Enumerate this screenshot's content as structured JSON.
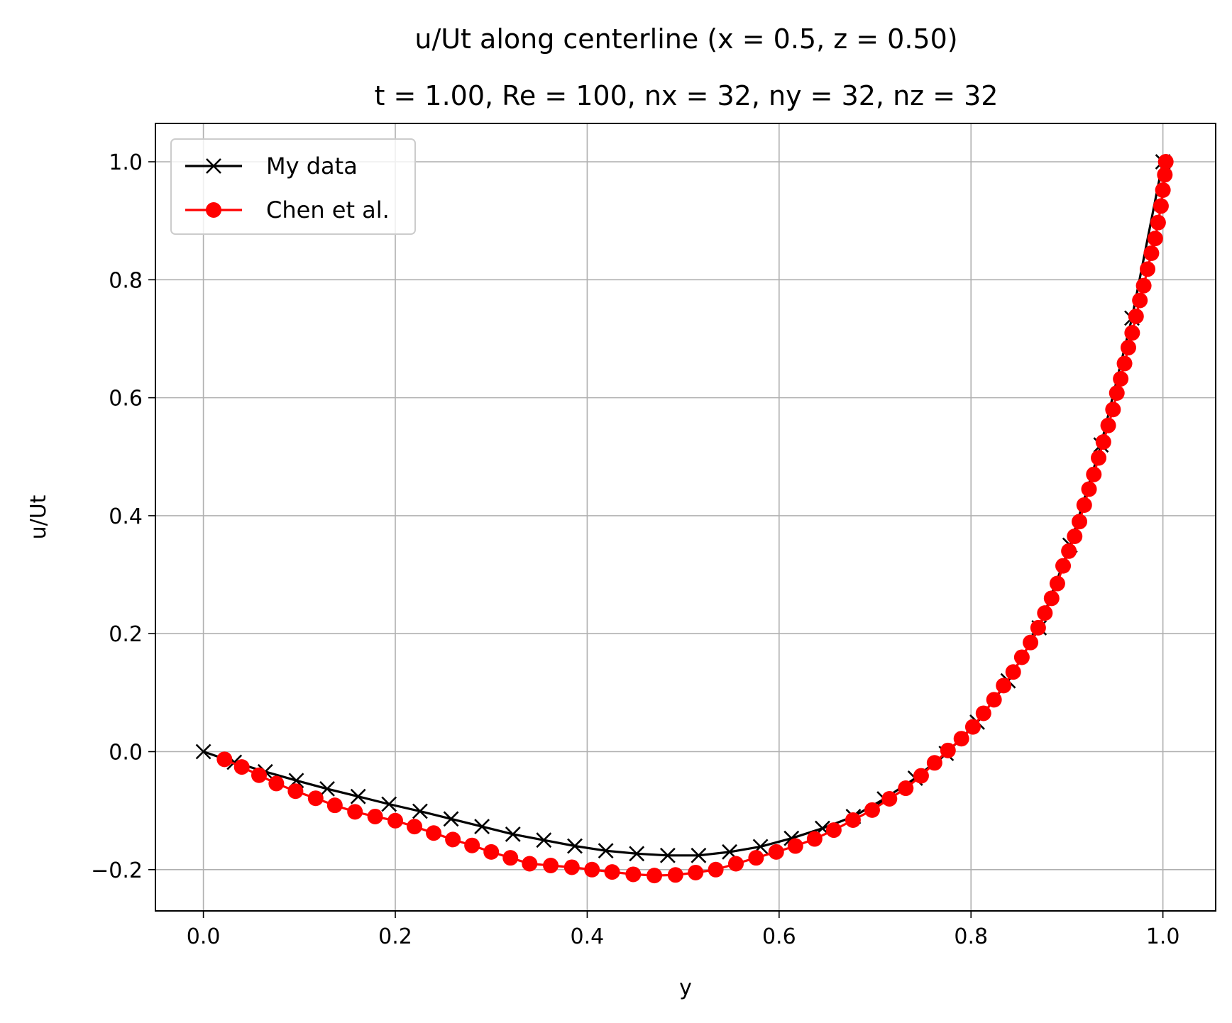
{
  "chart_data": {
    "type": "line",
    "title": "u/Ut along centerline (x = 0.5, z = 0.50)",
    "subtitle": "t = 1.00, Re = 100, nx = 32, ny = 32, nz = 32",
    "xlabel": "y",
    "ylabel": "u/Ut",
    "xlim": [
      -0.05,
      1.055
    ],
    "ylim": [
      -0.27,
      1.065
    ],
    "xticks": [
      0.0,
      0.2,
      0.4,
      0.6,
      0.8,
      1.0
    ],
    "xtick_labels": [
      "0.0",
      "0.2",
      "0.4",
      "0.6",
      "0.8",
      "1.0"
    ],
    "yticks": [
      -0.2,
      0.0,
      0.2,
      0.4,
      0.6,
      0.8,
      1.0
    ],
    "ytick_labels": [
      "−0.2",
      "0.0",
      "0.2",
      "0.4",
      "0.6",
      "0.8",
      "1.0"
    ],
    "grid": true,
    "legend": "top-left",
    "series": [
      {
        "name": "My data",
        "color": "#000000",
        "marker": "x",
        "x": [
          0.0,
          0.0323,
          0.0645,
          0.0968,
          0.129,
          0.1613,
          0.1935,
          0.2258,
          0.2581,
          0.2903,
          0.3226,
          0.3548,
          0.3871,
          0.4194,
          0.4516,
          0.4839,
          0.5161,
          0.5484,
          0.5806,
          0.6129,
          0.6452,
          0.6774,
          0.7097,
          0.7419,
          0.7742,
          0.8065,
          0.8387,
          0.871,
          0.9032,
          0.9355,
          0.9677,
          1.0
        ],
        "y": [
          0.0,
          -0.018,
          -0.034,
          -0.049,
          -0.063,
          -0.076,
          -0.089,
          -0.101,
          -0.114,
          -0.127,
          -0.14,
          -0.15,
          -0.16,
          -0.168,
          -0.173,
          -0.176,
          -0.176,
          -0.17,
          -0.161,
          -0.147,
          -0.13,
          -0.11,
          -0.08,
          -0.045,
          -0.003,
          0.05,
          0.12,
          0.21,
          0.35,
          0.52,
          0.735,
          1.0
        ]
      },
      {
        "name": "Chen et al.",
        "color": "#ff0000",
        "marker": "o",
        "x": [
          0.022,
          0.04,
          0.058,
          0.076,
          0.096,
          0.117,
          0.137,
          0.158,
          0.179,
          0.2,
          0.22,
          0.24,
          0.26,
          0.28,
          0.3,
          0.32,
          0.34,
          0.362,
          0.384,
          0.405,
          0.426,
          0.448,
          0.47,
          0.492,
          0.513,
          0.534,
          0.555,
          0.576,
          0.597,
          0.617,
          0.637,
          0.657,
          0.677,
          0.697,
          0.715,
          0.732,
          0.748,
          0.762,
          0.776,
          0.79,
          0.802,
          0.813,
          0.824,
          0.834,
          0.844,
          0.853,
          0.862,
          0.87,
          0.877,
          0.884,
          0.89,
          0.896,
          0.902,
          0.908,
          0.913,
          0.918,
          0.923,
          0.928,
          0.933,
          0.938,
          0.943,
          0.948,
          0.952,
          0.956,
          0.96,
          0.964,
          0.968,
          0.972,
          0.976,
          0.98,
          0.984,
          0.988,
          0.992,
          0.995,
          0.998,
          1.0,
          1.002,
          1.003
        ],
        "y": [
          -0.013,
          -0.026,
          -0.04,
          -0.054,
          -0.067,
          -0.079,
          -0.091,
          -0.102,
          -0.11,
          -0.117,
          -0.127,
          -0.138,
          -0.149,
          -0.159,
          -0.17,
          -0.18,
          -0.19,
          -0.193,
          -0.196,
          -0.2,
          -0.204,
          -0.208,
          -0.21,
          -0.209,
          -0.205,
          -0.2,
          -0.19,
          -0.18,
          -0.17,
          -0.16,
          -0.148,
          -0.133,
          -0.116,
          -0.099,
          -0.08,
          -0.062,
          -0.041,
          -0.019,
          0.002,
          0.022,
          0.042,
          0.065,
          0.088,
          0.112,
          0.135,
          0.16,
          0.185,
          0.21,
          0.235,
          0.26,
          0.285,
          0.315,
          0.34,
          0.365,
          0.39,
          0.418,
          0.445,
          0.47,
          0.498,
          0.525,
          0.553,
          0.58,
          0.608,
          0.632,
          0.658,
          0.685,
          0.71,
          0.738,
          0.765,
          0.79,
          0.818,
          0.845,
          0.87,
          0.897,
          0.925,
          0.952,
          0.978,
          1.0
        ]
      }
    ]
  }
}
